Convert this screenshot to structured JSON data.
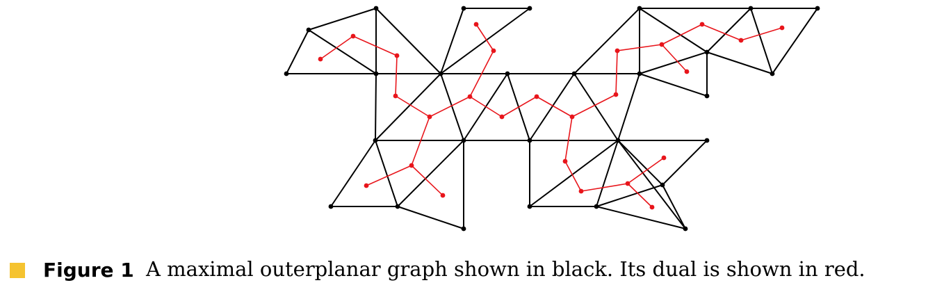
{
  "caption": {
    "label": "Figure 1",
    "text": "A maximal outerplanar graph shown in black. Its dual is shown in red."
  },
  "colors": {
    "graph": "#000000",
    "dual": "#e8151b",
    "marker": "#f5c330"
  }
}
